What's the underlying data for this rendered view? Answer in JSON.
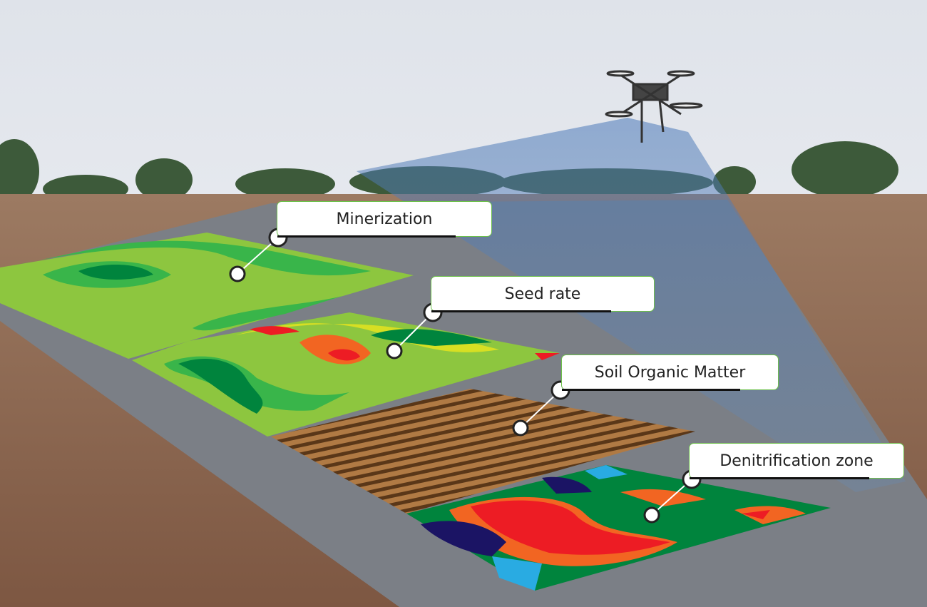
{
  "labels": [
    {
      "text": "Minerization"
    },
    {
      "text": "Seed rate"
    },
    {
      "text": "Soil Organic Matter"
    },
    {
      "text": "Denitrification zone"
    }
  ],
  "colors": {
    "label_border": "#6cc04a",
    "map_green_light": "#8dc63f",
    "map_green_mid": "#39b54a",
    "map_green_dark": "#00843d",
    "map_yellow": "#d7df23",
    "map_orange": "#f26522",
    "map_red": "#ed1c24",
    "map_brown": "#8b5a2b",
    "map_navy": "#1b1464",
    "map_cyan": "#29abe2",
    "soil": "#8a6248",
    "sky": "#e8ebf0"
  }
}
